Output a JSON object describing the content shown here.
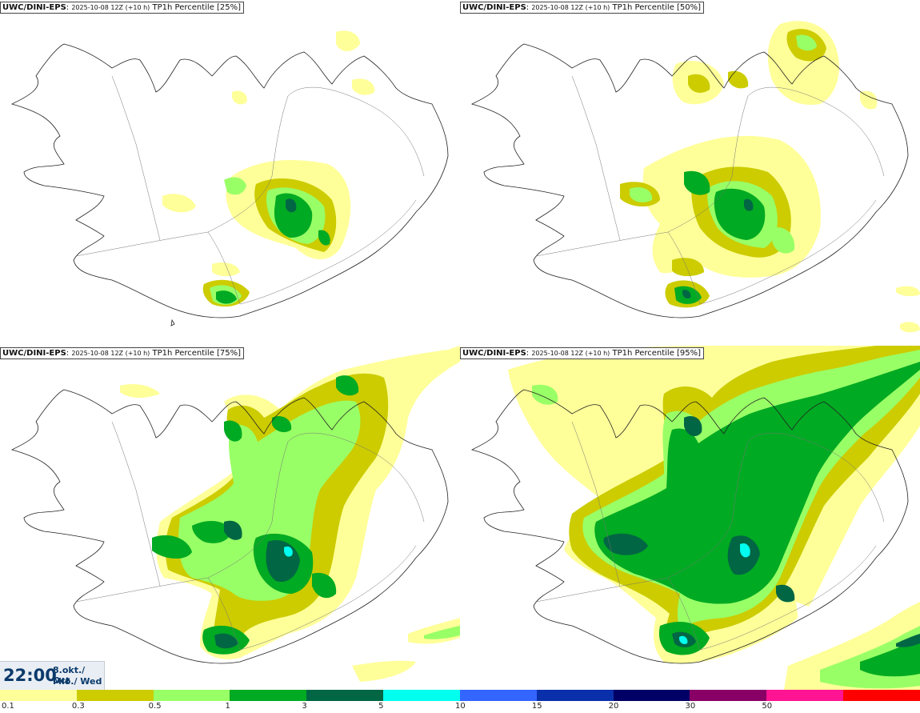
{
  "panels": [
    {
      "model": "UWC/DINI-EPS",
      "run": "2025-10-08 12Z (+10 h)",
      "field": "TP1h Percentile [25%]"
    },
    {
      "model": "UWC/DINI-EPS",
      "run": "2025-10-08 12Z (+10 h)",
      "field": "TP1h Percentile [50%]"
    },
    {
      "model": "UWC/DINI-EPS",
      "run": "2025-10-08 12Z (+10 h)",
      "field": "TP1h Percentile [75%]"
    },
    {
      "model": "UWC/DINI-EPS",
      "run": "2025-10-08 12Z (+10 h)",
      "field": "TP1h Percentile [95%]"
    }
  ],
  "time": {
    "clock": "22:00",
    "date_line1": "8.okt./ Oct",
    "date_line2": "Mið./ Wed"
  },
  "legend": {
    "colors": [
      "#ffff99",
      "#cccc00",
      "#99ff66",
      "#00aa22",
      "#006644",
      "#00ffee",
      "#3366ff",
      "#0a2faa",
      "#000066",
      "#880066",
      "#ff1493",
      "#ff0000"
    ],
    "ticks": [
      "0.1",
      "0.3",
      "0.5",
      "1",
      "3",
      "5",
      "10",
      "15",
      "20",
      "30",
      "50"
    ]
  }
}
